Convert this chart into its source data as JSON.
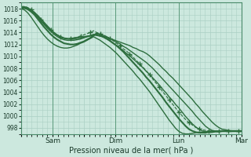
{
  "title": "Pression niveau de la mer( hPa )",
  "bg_color": "#cce8de",
  "grid_color": "#aacfc4",
  "line_color": "#2d6e3e",
  "ylim": [
    997,
    1019
  ],
  "yticks": [
    998,
    1000,
    1002,
    1004,
    1006,
    1008,
    1010,
    1012,
    1014,
    1016,
    1018
  ],
  "xtick_labels": [
    "",
    "Sam",
    "",
    "Dim",
    "",
    "Lun",
    "",
    "Mar"
  ],
  "xtick_positions": [
    0,
    24,
    48,
    72,
    96,
    120,
    144,
    168
  ],
  "vline_positions": [
    24,
    72,
    120,
    168
  ],
  "num_hours": 168,
  "lines": [
    {
      "y": [
        1018.2,
        1018.3,
        1018.1,
        1017.8,
        1017.4,
        1016.9,
        1016.3,
        1015.7,
        1015.1,
        1014.5,
        1014.0,
        1013.6,
        1013.3,
        1013.1,
        1013.0,
        1013.0,
        1013.1,
        1013.2,
        1013.3,
        1013.3,
        1013.4,
        1013.5,
        1013.6,
        1013.5,
        1013.4,
        1013.3,
        1013.2,
        1013.0,
        1012.8,
        1012.6,
        1012.4,
        1012.2,
        1012.0,
        1011.8,
        1011.5,
        1011.3,
        1011.0,
        1010.8,
        1010.5,
        1010.1,
        1009.6,
        1009.1,
        1008.6,
        1008.0,
        1007.5,
        1006.9,
        1006.4,
        1005.8,
        1005.2,
        1004.6,
        1004.0,
        1003.4,
        1002.8,
        1002.1,
        1001.5,
        1000.8,
        1000.2,
        999.6,
        999.0,
        998.5,
        998.1,
        997.8,
        997.7,
        997.6,
        997.5,
        997.5,
        997.5,
        997.5
      ],
      "ls": "-",
      "lw": 1.0,
      "marker": null,
      "color": "#2d6e3e"
    },
    {
      "y": [
        1018.2,
        1018.3,
        1018.1,
        1017.8,
        1017.3,
        1016.7,
        1016.1,
        1015.5,
        1014.9,
        1014.4,
        1013.9,
        1013.5,
        1013.2,
        1013.0,
        1012.9,
        1012.9,
        1012.9,
        1013.0,
        1013.1,
        1013.2,
        1013.3,
        1013.4,
        1013.5,
        1013.8,
        1013.7,
        1013.5,
        1013.3,
        1013.0,
        1012.7,
        1012.4,
        1012.1,
        1011.7,
        1011.4,
        1011.0,
        1010.6,
        1010.2,
        1009.8,
        1009.4,
        1009.0,
        1008.5,
        1008.0,
        1007.4,
        1006.8,
        1006.2,
        1005.6,
        1005.0,
        1004.4,
        1003.8,
        1003.2,
        1002.6,
        1002.0,
        1001.4,
        1000.8,
        1000.1,
        999.5,
        998.9,
        998.3,
        997.9,
        997.6,
        997.5,
        997.4,
        997.4,
        997.4,
        997.4,
        997.4,
        997.4,
        997.4,
        997.4
      ],
      "ls": "-",
      "lw": 1.0,
      "marker": null,
      "color": "#2d6e3e"
    },
    {
      "y": [
        1018.1,
        1018.2,
        1018.0,
        1017.7,
        1017.2,
        1016.6,
        1015.9,
        1015.3,
        1014.7,
        1014.2,
        1013.7,
        1013.3,
        1013.0,
        1012.8,
        1012.7,
        1012.7,
        1012.7,
        1012.8,
        1012.9,
        1013.1,
        1013.3,
        1013.5,
        1013.7,
        1013.6,
        1013.4,
        1013.2,
        1012.9,
        1012.6,
        1012.2,
        1011.8,
        1011.4,
        1011.0,
        1010.5,
        1010.1,
        1009.6,
        1009.1,
        1008.6,
        1008.1,
        1007.5,
        1007.0,
        1006.4,
        1005.8,
        1005.2,
        1004.5,
        1003.9,
        1003.2,
        1002.6,
        1001.9,
        1001.3,
        1000.6,
        999.9,
        999.3,
        998.7,
        998.2,
        997.8,
        997.5,
        997.4,
        997.3,
        997.3,
        997.4,
        997.4,
        997.5,
        997.5,
        997.5,
        997.5,
        997.5,
        997.5,
        997.5
      ],
      "ls": "-",
      "lw": 1.0,
      "marker": null,
      "color": "#2d6e3e"
    },
    {
      "y": [
        1018.0,
        1018.1,
        1017.9,
        1017.5,
        1017.0,
        1016.3,
        1015.6,
        1014.9,
        1014.3,
        1013.7,
        1013.2,
        1012.8,
        1012.5,
        1012.2,
        1012.1,
        1012.0,
        1012.0,
        1012.1,
        1012.3,
        1012.5,
        1012.8,
        1013.1,
        1013.5,
        1013.9,
        1013.6,
        1013.3,
        1013.0,
        1012.6,
        1012.2,
        1011.8,
        1011.3,
        1010.8,
        1010.2,
        1009.6,
        1009.0,
        1008.4,
        1007.8,
        1007.2,
        1006.5,
        1005.9,
        1005.2,
        1004.5,
        1003.8,
        1003.1,
        1002.3,
        1001.6,
        1000.9,
        1000.2,
        999.5,
        998.9,
        998.3,
        997.8,
        997.5,
        997.3,
        997.2,
        997.2,
        997.2,
        997.3,
        997.3,
        997.4,
        997.4,
        997.5,
        997.5,
        997.5,
        997.5,
        997.5,
        997.5,
        997.5
      ],
      "ls": "-",
      "lw": 1.5,
      "marker": null,
      "color": "#2d6e3e"
    },
    {
      "y": [
        1018.3,
        1018.4,
        1018.2,
        1017.9,
        1017.4,
        1016.8,
        1016.2,
        1015.6,
        1015.0,
        1014.5,
        1014.0,
        1013.6,
        1013.3,
        1013.1,
        1013.0,
        1013.0,
        1013.1,
        1013.2,
        1013.4,
        1013.6,
        1013.8,
        1014.0,
        1014.3,
        1014.0,
        1013.8,
        1013.6,
        1013.3,
        1013.0,
        1012.6,
        1012.2,
        1011.8,
        1011.3,
        1010.9,
        1010.4,
        1009.9,
        1009.3,
        1008.8,
        1008.2,
        1007.6,
        1006.9,
        1006.2,
        1005.5,
        1004.8,
        1004.1,
        1003.4,
        1002.7,
        1002.0,
        1001.3,
        1000.6,
        1000.0,
        999.4,
        998.9,
        998.5,
        998.1,
        997.9,
        997.7,
        997.6,
        997.5,
        997.5,
        997.5,
        997.5,
        997.5,
        997.5,
        997.5,
        997.5,
        997.5,
        997.5,
        997.5
      ],
      "ls": "--",
      "lw": 0.8,
      "marker": "+",
      "color": "#2d6e3e"
    },
    {
      "y": [
        1018.0,
        1017.8,
        1017.3,
        1016.6,
        1015.8,
        1015.0,
        1014.2,
        1013.5,
        1012.9,
        1012.4,
        1012.0,
        1011.7,
        1011.5,
        1011.4,
        1011.4,
        1011.5,
        1011.7,
        1011.9,
        1012.2,
        1012.4,
        1012.7,
        1013.0,
        1013.3,
        1013.0,
        1012.7,
        1012.3,
        1011.9,
        1011.5,
        1011.0,
        1010.5,
        1009.9,
        1009.3,
        1008.7,
        1008.1,
        1007.5,
        1006.8,
        1006.2,
        1005.5,
        1004.8,
        1004.1,
        1003.3,
        1002.5,
        1001.7,
        1000.9,
        1000.1,
        999.3,
        998.6,
        997.9,
        997.4,
        997.1,
        997.0,
        997.0,
        997.1,
        997.2,
        997.3,
        997.3,
        997.4,
        997.4,
        997.5,
        997.5,
        997.5,
        997.5,
        997.5,
        997.5,
        997.5,
        997.5,
        997.5,
        997.5
      ],
      "ls": "-",
      "lw": 1.0,
      "marker": null,
      "color": "#2d6e3e"
    }
  ]
}
